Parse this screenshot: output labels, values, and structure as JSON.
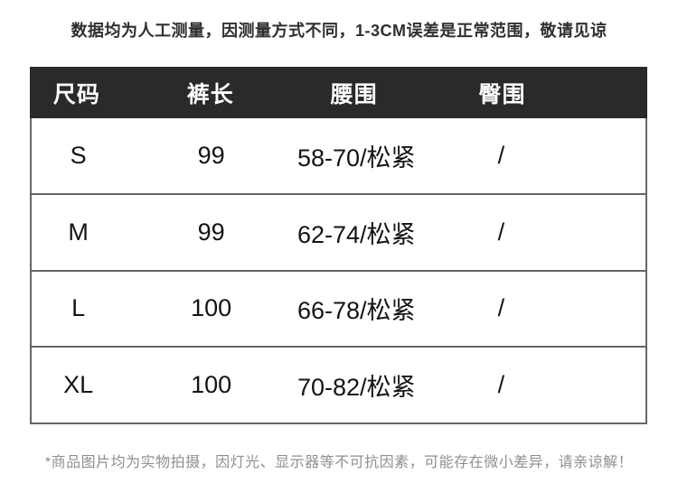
{
  "notice_top": "数据均为人工测量，因测量方式不同，1-3CM误差是正常范围，敬请见谅",
  "notice_bottom": "*商品图片均为实物拍摄，因灯光、显示器等不可抗因素，可能存在微小差异，请亲谅解！",
  "colors": {
    "header_bg": "#2a2a2a",
    "header_text": "#ffffff",
    "table_border": "#666666",
    "body_text": "#141414",
    "notice_top_text": "#2f2f2f",
    "notice_bottom_text": "#8f8f8f"
  },
  "size_chart": {
    "columns": [
      "尺码",
      "裤长",
      "腰围",
      "臀围"
    ],
    "rows": [
      {
        "size": "S",
        "length": "99",
        "waist": "58-70/松紧",
        "hip": "/"
      },
      {
        "size": "M",
        "length": "99",
        "waist": "62-74/松紧",
        "hip": "/"
      },
      {
        "size": "L",
        "length": "100",
        "waist": "66-78/松紧",
        "hip": "/"
      },
      {
        "size": "XL",
        "length": "100",
        "waist": "70-82/松紧",
        "hip": "/"
      }
    ]
  }
}
